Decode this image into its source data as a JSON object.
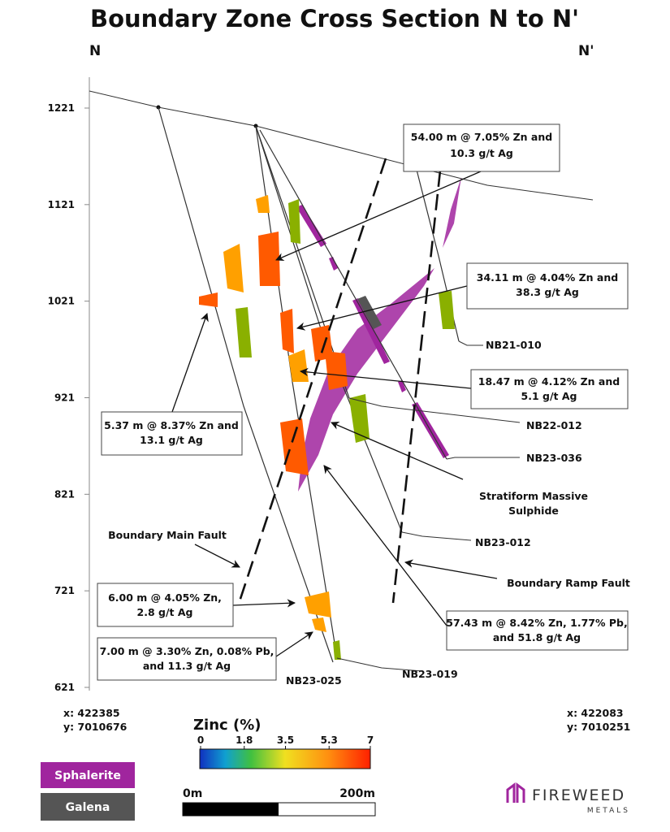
{
  "header": {
    "title": "Boundary Zone Cross Section N to N'",
    "start_label": "N",
    "end_label": "N'"
  },
  "elevation_axis": {
    "ticks": [
      1221,
      1121,
      1021,
      921,
      821,
      721,
      621
    ]
  },
  "callouts": [
    {
      "lines": [
        "54.00 m @ 7.05% Zn and",
        "10.3 g/t Ag"
      ]
    },
    {
      "lines": [
        "34.11 m @ 4.04% Zn and",
        "38.3 g/t Ag"
      ]
    },
    {
      "lines": [
        "18.47 m @ 4.12% Zn and",
        "5.1 g/t Ag"
      ]
    },
    {
      "lines": [
        "5.37 m @ 8.37% Zn and",
        "13.1 g/t Ag"
      ]
    },
    {
      "lines": [
        "6.00 m @ 4.05% Zn,",
        "2.8 g/t Ag"
      ]
    },
    {
      "lines": [
        "7.00 m @ 3.30% Zn, 0.08% Pb,",
        "and 11.3 g/t Ag"
      ]
    },
    {
      "lines": [
        "57.43 m @ 8.42% Zn, 1.77% Pb,",
        "and 51.8 g/t Ag"
      ]
    }
  ],
  "labels": {
    "drill_holes": [
      "NB21-010",
      "NB22-012",
      "NB23-036",
      "NB23-012",
      "NB23-025",
      "NB23-019"
    ],
    "stratiform": [
      "Stratiform Massive",
      "Sulphide"
    ],
    "main_fault": "Boundary Main Fault",
    "ramp_fault": "Boundary Ramp Fault"
  },
  "coordinates": {
    "start": [
      "x: 422385",
      "y: 7010676"
    ],
    "end": [
      "x: 422083",
      "y: 7010251"
    ]
  },
  "legend": {
    "zinc_title": "Zinc (%)",
    "zinc_ticks": [
      0,
      1.8,
      3.5,
      5.3,
      7
    ],
    "sphalerite": "Sphalerite",
    "galena": "Galena",
    "scale_start": "0m",
    "scale_end": "200m"
  },
  "logo": {
    "name": "FIREWEED",
    "sub": "METALS"
  }
}
